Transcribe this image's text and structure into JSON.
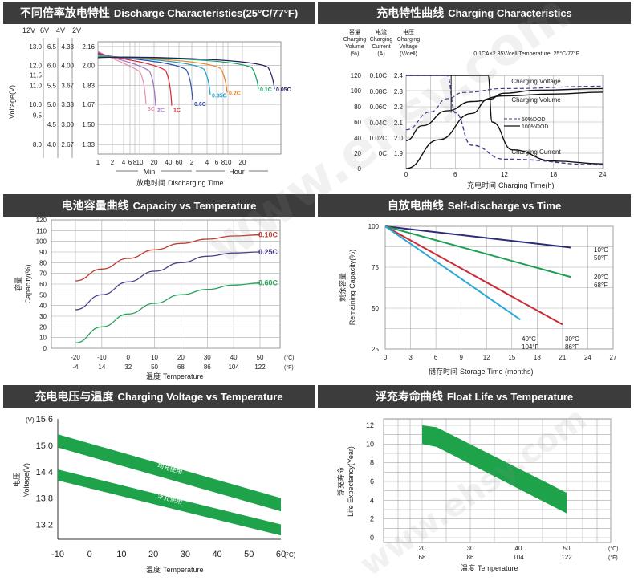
{
  "panels": {
    "discharge": {
      "title_cn": "不同倍率放电特性",
      "title_en": "Discharge Characteristics(25°C/77°F)",
      "xlabel_cn": "放电时间",
      "xlabel_en": "Discharging  Time",
      "unit_min": "Min",
      "unit_hour": "Hour",
      "ylabel": "Voltage(V)",
      "scale_headers": [
        "12V",
        "6V",
        "4V",
        "2V"
      ],
      "scale_12v": [
        "13.0",
        "12.0",
        "11.5",
        "11.0",
        "10.0",
        "9.5",
        "8.0"
      ],
      "scale_6v": [
        "6.5",
        "6.0",
        "5.5",
        "5.0",
        "4.5",
        "4.0"
      ],
      "scale_4v": [
        "4.33",
        "4.00",
        "3.67",
        "3.33",
        "3.00",
        "2.67"
      ],
      "scale_2v": [
        "2.16",
        "2.00",
        "1.83",
        "1.67",
        "1.50",
        "1.33"
      ]
    },
    "charging": {
      "title_cn": "充电特性曲线",
      "title_en": "Charging Characteristics",
      "col_headers": [
        [
          "容量",
          "Charging",
          "Volume",
          "(%)"
        ],
        [
          "电流",
          "Charging",
          "Current",
          "(A)"
        ],
        [
          "电压",
          "Charging",
          "Voltage",
          "(V/cell)"
        ]
      ],
      "condition": "0.1CA×2.35V/cell  Temperature: 25°C/77°F",
      "xlabel_cn": "充电时间",
      "xlabel_en": "Charging Time(h)",
      "vol_ticks": [
        "120",
        "100",
        "80",
        "60",
        "40",
        "20",
        "0"
      ],
      "cur_ticks": [
        "0.10C",
        "0.08C",
        "0.06C",
        "0.04C",
        "0.02C",
        "0C"
      ],
      "volt_ticks": [
        "2.4",
        "2.3",
        "2.2",
        "2.1",
        "2.0",
        "1.9"
      ],
      "legend_50": "50%DOD",
      "legend_100": "100%DOD",
      "label_voltage": "Charging Voltage",
      "label_volume": "Charging Volume",
      "label_current": "Charging Current"
    },
    "capacity": {
      "title_cn": "电池容量曲线",
      "title_en": "Capacity vs Temperature",
      "ylabel_cn": "容量",
      "ylabel_en": "Capacity(%)",
      "xlabel_cn": "温度",
      "xlabel_en": "Temperature",
      "unit_c": "(°C)",
      "unit_f": "(°F)"
    },
    "selfdischarge": {
      "title_cn": "自放电曲线",
      "title_en": "Self-discharge vs Time",
      "ylabel_cn": "剩余容量",
      "ylabel_en": "Remaining Capacity(%)",
      "xlabel_cn": "储存时间",
      "xlabel_en": "Storage Time (months)"
    },
    "chargevoltage": {
      "title_cn": "充电电压与温度",
      "title_en": "Charging Voltage vs Temperature",
      "ylabel_cn": "电压",
      "ylabel_en": "Voltage(V)",
      "xlabel_cn": "温度",
      "xlabel_en": "Temperature",
      "y_unit": "(V)",
      "x_unit": "(°C)",
      "band_upper_label": "均充使用",
      "band_lower_label": "浮充使用"
    },
    "floatlife": {
      "title_cn": "浮充寿命曲线",
      "title_en": "Float Life vs Temperature",
      "ylabel_cn": "浮充寿命",
      "ylabel_en": "Life Expectancy(Year)",
      "xlabel_cn": "温度",
      "xlabel_en": "Temperature",
      "unit_c": "(°C)",
      "unit_f": "(°F)"
    }
  },
  "watermark": "www.ehsy.com",
  "chart_data": [
    {
      "type": "line",
      "id": "discharge",
      "x_ticks": [
        "1",
        "2",
        "4",
        "6",
        "8",
        "10",
        "20",
        "40",
        "60",
        "2",
        "4",
        "6",
        "8",
        "10",
        "20"
      ],
      "y_ticks_2v": [
        2.16,
        2.0,
        1.83,
        1.67,
        1.5,
        1.33
      ],
      "series": [
        {
          "name": "3C",
          "color": "#e88fb0",
          "label_x_min": 4.2,
          "end_v": 1.67
        },
        {
          "name": "2C",
          "color": "#a070c0",
          "label_x_min": 7,
          "end_v": 1.66
        },
        {
          "name": "1C",
          "color": "#e02030",
          "label_x_min": 20,
          "end_v": 1.66
        },
        {
          "name": "0.6C",
          "color": "#3050b0",
          "label_x_min": 45,
          "end_v": 1.71
        },
        {
          "name": "0.35C",
          "color": "#20a0c8",
          "label_x_min": 90,
          "end_v": 1.75
        },
        {
          "name": "0.2C",
          "color": "#f08020",
          "label_x_min": 180,
          "end_v": 1.77
        },
        {
          "name": "0.1C",
          "color": "#10a060",
          "label_x_min": 480,
          "end_v": 1.8
        },
        {
          "name": "0.05C",
          "color": "#202060",
          "label_x_min": 900,
          "end_v": 1.8
        }
      ]
    },
    {
      "type": "line",
      "id": "charging",
      "x_ticks": [
        0,
        6,
        12,
        18,
        24
      ],
      "xlim": [
        0,
        24
      ],
      "series": [
        {
          "name": "Charging Voltage",
          "axis": "voltage",
          "points": [
            [
              0,
              2.05
            ],
            [
              2,
              2.13
            ],
            [
              5,
              2.21
            ],
            [
              8,
              2.26
            ],
            [
              12,
              2.29
            ],
            [
              18,
              2.3
            ],
            [
              24,
              2.31
            ]
          ]
        },
        {
          "name": "Charging Volume",
          "axis": "volume",
          "points": [
            [
              0,
              0
            ],
            [
              4,
              37
            ],
            [
              8,
              71
            ],
            [
              10,
              89
            ],
            [
              12,
              97
            ],
            [
              16,
              101
            ],
            [
              24,
              103
            ]
          ]
        },
        {
          "name": "Charging Current",
          "axis": "current",
          "points": [
            [
              0,
              0.1
            ],
            [
              10,
              0.1
            ],
            [
              10.5,
              0.05
            ],
            [
              13,
              0.02
            ],
            [
              18,
              0.008
            ],
            [
              24,
              0.005
            ]
          ]
        },
        {
          "name": "50%DOD",
          "axis": "current",
          "dashed": true,
          "points": [
            [
              0,
              0.1
            ],
            [
              5,
              0.1
            ],
            [
              6,
              0.06
            ],
            [
              8,
              0.025
            ],
            [
              12,
              0.01
            ],
            [
              24,
              0.004
            ]
          ]
        }
      ]
    },
    {
      "type": "line",
      "id": "capacity",
      "x_ticks_c": [
        -20,
        -10,
        0,
        10,
        20,
        30,
        40,
        50
      ],
      "x_ticks_f": [
        -4,
        14,
        32,
        50,
        68,
        86,
        104,
        122
      ],
      "y_ticks": [
        0,
        10,
        20,
        30,
        40,
        50,
        60,
        70,
        80,
        90,
        100,
        110,
        120
      ],
      "xlim": [
        -20,
        50
      ],
      "ylim": [
        0,
        120
      ],
      "series": [
        {
          "name": "0.10C",
          "color": "#c0392b",
          "points": [
            [
              -20,
              63
            ],
            [
              -10,
              74
            ],
            [
              0,
              84
            ],
            [
              10,
              92
            ],
            [
              20,
              98
            ],
            [
              30,
              102
            ],
            [
              40,
              105
            ],
            [
              50,
              106
            ]
          ]
        },
        {
          "name": "0.25C",
          "color": "#4a3f8a",
          "points": [
            [
              -20,
              36
            ],
            [
              -10,
              50
            ],
            [
              0,
              62
            ],
            [
              10,
              72
            ],
            [
              20,
              80
            ],
            [
              30,
              86
            ],
            [
              40,
              89
            ],
            [
              50,
              90
            ]
          ]
        },
        {
          "name": "0.60C",
          "color": "#27a35a",
          "points": [
            [
              -20,
              5
            ],
            [
              -10,
              20
            ],
            [
              0,
              32
            ],
            [
              10,
              42
            ],
            [
              20,
              50
            ],
            [
              30,
              55
            ],
            [
              40,
              59
            ],
            [
              50,
              61
            ]
          ]
        }
      ]
    },
    {
      "type": "line",
      "id": "selfdischarge",
      "x_ticks": [
        0,
        3,
        6,
        9,
        12,
        15,
        18,
        21,
        24,
        27
      ],
      "y_ticks": [
        25,
        50,
        75,
        100
      ],
      "xlim": [
        0,
        27
      ],
      "ylim": [
        25,
        100
      ],
      "series": [
        {
          "name": "10°C 50°F",
          "color": "#2c2c7a",
          "points": [
            [
              0,
              100
            ],
            [
              22,
              87
            ]
          ]
        },
        {
          "name": "20°C 68°F",
          "color": "#1f9e58",
          "points": [
            [
              0,
              100
            ],
            [
              22,
              69
            ]
          ]
        },
        {
          "name": "30°C 86°F",
          "color": "#cc2a36",
          "points": [
            [
              0,
              100
            ],
            [
              21,
              40
            ]
          ]
        },
        {
          "name": "40°C 104°F",
          "color": "#2aa7d8",
          "points": [
            [
              0,
              100
            ],
            [
              16,
              43
            ]
          ]
        }
      ]
    },
    {
      "type": "area",
      "id": "chargevoltage",
      "x_ticks": [
        -10,
        0,
        10,
        20,
        30,
        40,
        50,
        60
      ],
      "y_ticks": [
        13.2,
        13.8,
        14.4,
        15.0,
        15.6
      ],
      "xlim": [
        -10,
        60
      ],
      "ylim": [
        12.9,
        15.6
      ],
      "series": [
        {
          "name": "均充使用",
          "color": "#1ea34a",
          "upper": [
            [
              -10,
              15.25
            ],
            [
              60,
              13.8
            ]
          ],
          "lower": [
            [
              -10,
              14.95
            ],
            [
              60,
              13.5
            ]
          ]
        },
        {
          "name": "浮充使用",
          "color": "#1ea34a",
          "upper": [
            [
              -10,
              14.45
            ],
            [
              60,
              13.2
            ]
          ],
          "lower": [
            [
              -10,
              14.2
            ],
            [
              60,
              12.95
            ]
          ]
        }
      ]
    },
    {
      "type": "area",
      "id": "floatlife",
      "x_ticks_c": [
        20,
        25,
        30,
        35,
        40,
        45,
        50
      ],
      "x_ticks_f": [
        68,
        "",
        86,
        "",
        104,
        "",
        122
      ],
      "y_ticks": [
        0,
        2,
        4,
        6,
        8,
        10,
        12
      ],
      "xlim": [
        20,
        50
      ],
      "ylim": [
        0,
        12
      ],
      "series": [
        {
          "name": "band",
          "color": "#1ea34a",
          "upper": [
            [
              20,
              12
            ],
            [
              23,
              11.8
            ],
            [
              50,
              4.8
            ]
          ],
          "lower": [
            [
              20,
              10
            ],
            [
              23,
              9.7
            ],
            [
              50,
              2.6
            ]
          ]
        }
      ]
    }
  ]
}
